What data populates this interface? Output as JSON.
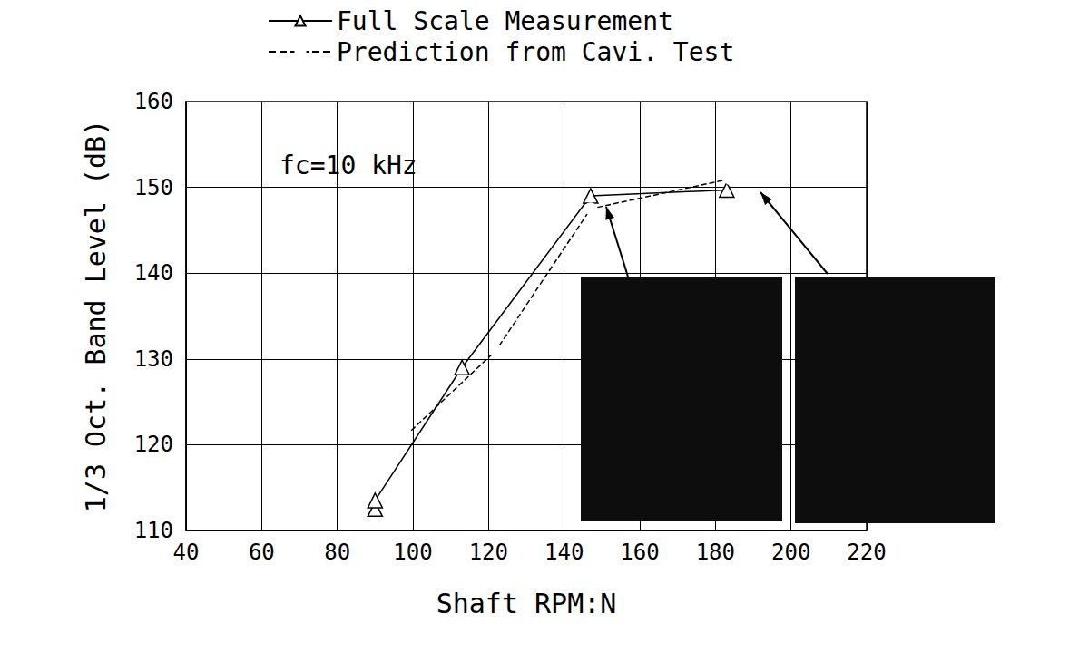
{
  "chart_data": {
    "type": "line",
    "annotation": "fc=10 kHz",
    "x_label": "Shaft RPM:N",
    "y_label": "1/3 Oct. Band Level (dB)",
    "xlim": [
      40,
      220
    ],
    "xticks": [
      40,
      60,
      80,
      100,
      120,
      140,
      160,
      180,
      200,
      220
    ],
    "ylim": [
      110,
      160
    ],
    "yticks": [
      110,
      120,
      130,
      140,
      150,
      160
    ],
    "grid": true,
    "legend": "top",
    "series": [
      {
        "name": "Full Scale Measurement",
        "color": "#000000",
        "marker": "triangle",
        "line_style": "solid",
        "x": [
          90,
          90,
          113,
          147,
          183
        ],
        "values": [
          112.5,
          113.5,
          129,
          149,
          149.7
        ]
      },
      {
        "name": "Prediction from Cavi. Test",
        "color": "#000000",
        "marker": "circle",
        "line_style": "dashed",
        "x": [
          98,
          122,
          147,
          184
        ],
        "values": [
          121,
          131,
          147.5,
          151
        ]
      }
    ]
  }
}
